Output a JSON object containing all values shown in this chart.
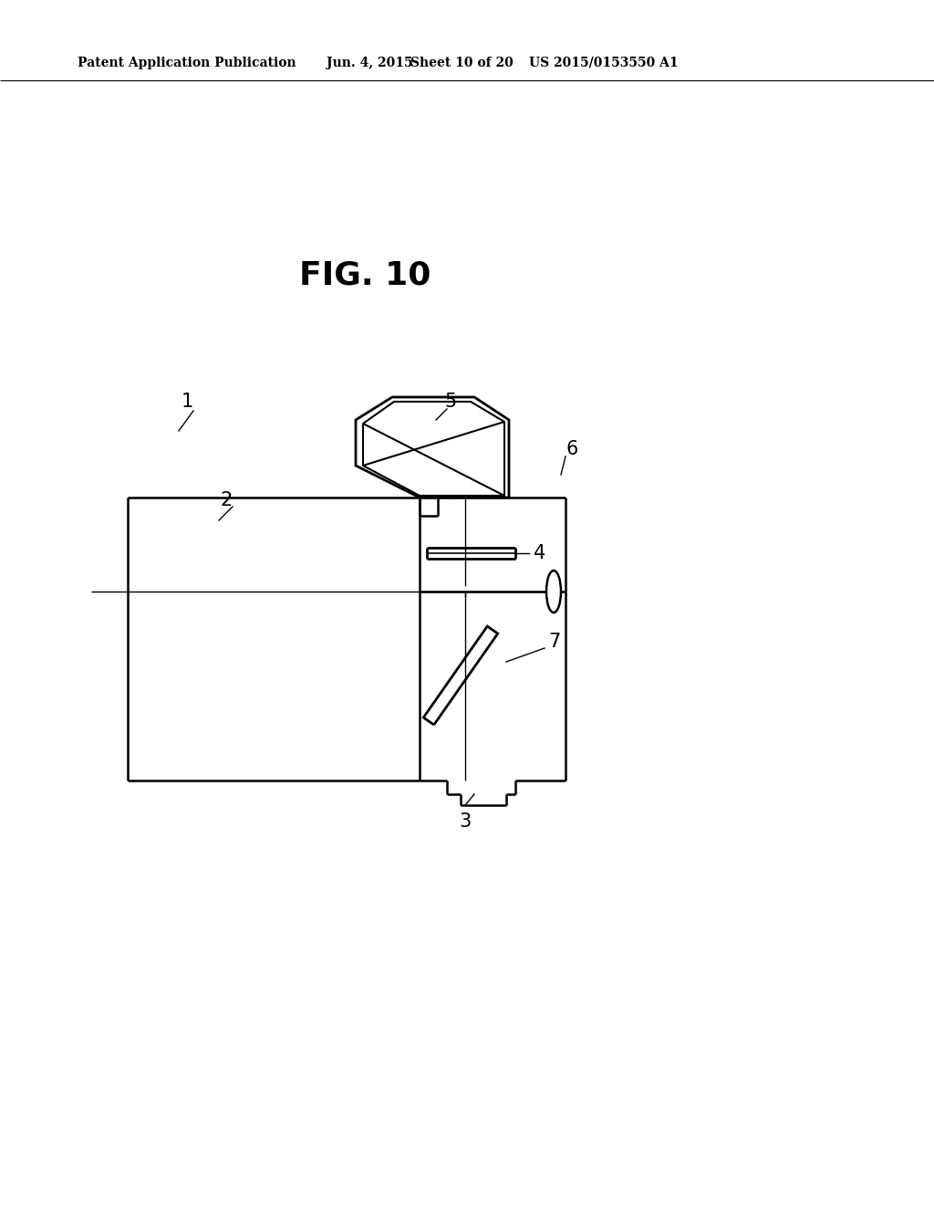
{
  "background_color": "#ffffff",
  "header_text": "Patent Application Publication",
  "header_date": "Jun. 4, 2015",
  "header_sheet": "Sheet 10 of 20",
  "header_patent": "US 2015/0153550 A1",
  "fig_label": "FIG. 10",
  "line_color": "#000000",
  "line_width": 1.8
}
